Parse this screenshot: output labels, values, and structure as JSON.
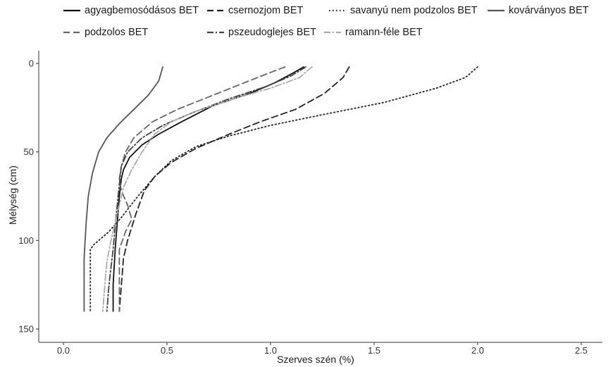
{
  "chart_data": {
    "type": "line",
    "title": "",
    "xlabel": "Szerves szén (%)",
    "ylabel": "Mélység (cm)",
    "xlim": [
      0,
      2.5
    ],
    "ylim": [
      150,
      0
    ],
    "y_reversed": true,
    "x_ticks": [
      0.0,
      0.5,
      1.0,
      1.5,
      2.0,
      2.5
    ],
    "x_tick_labels": [
      "0.0",
      "0.5",
      "1.0",
      "1.5",
      "2.0",
      "2.5"
    ],
    "y_ticks": [
      0,
      50,
      100,
      150
    ],
    "y_tick_labels": [
      "0",
      "50",
      "100",
      "150"
    ],
    "grid": false,
    "legend_position": "top",
    "series": [
      {
        "name": "agyagbemosódásos BET",
        "color": "#111111",
        "dash": "",
        "points": [
          [
            1.16,
            2
          ],
          [
            1.1,
            6
          ],
          [
            1.02,
            11
          ],
          [
            0.9,
            17
          ],
          [
            0.72,
            24
          ],
          [
            0.57,
            33
          ],
          [
            0.46,
            40
          ],
          [
            0.38,
            46
          ],
          [
            0.32,
            53
          ],
          [
            0.29,
            60
          ],
          [
            0.28,
            65
          ],
          [
            0.27,
            75
          ],
          [
            0.26,
            90
          ],
          [
            0.25,
            105
          ],
          [
            0.24,
            125
          ],
          [
            0.24,
            140
          ]
        ]
      },
      {
        "name": "csernozjom BET",
        "color": "#222222",
        "dash": "9,5",
        "points": [
          [
            1.38,
            2
          ],
          [
            1.35,
            8
          ],
          [
            1.26,
            17
          ],
          [
            1.12,
            26
          ],
          [
            0.95,
            33
          ],
          [
            0.8,
            40
          ],
          [
            0.64,
            48
          ],
          [
            0.52,
            56
          ],
          [
            0.44,
            64
          ],
          [
            0.39,
            72
          ],
          [
            0.35,
            85
          ],
          [
            0.31,
            100
          ],
          [
            0.29,
            110
          ],
          [
            0.28,
            125
          ],
          [
            0.27,
            140
          ]
        ]
      },
      {
        "name": "savanyú nem podzolos BET",
        "color": "#222222",
        "dash": "1.5,3.5",
        "points": [
          [
            2.0,
            2
          ],
          [
            1.94,
            8
          ],
          [
            1.8,
            14
          ],
          [
            1.55,
            22
          ],
          [
            1.25,
            29
          ],
          [
            1.0,
            35
          ],
          [
            0.8,
            41
          ],
          [
            0.64,
            47
          ],
          [
            0.52,
            55
          ],
          [
            0.44,
            64
          ],
          [
            0.36,
            75
          ],
          [
            0.28,
            87
          ],
          [
            0.22,
            95
          ],
          [
            0.15,
            102
          ],
          [
            0.13,
            105
          ],
          [
            0.13,
            120
          ],
          [
            0.13,
            140
          ]
        ]
      },
      {
        "name": "kovárványos BET",
        "color": "#555555",
        "dash": "",
        "points": [
          [
            0.48,
            2
          ],
          [
            0.46,
            10
          ],
          [
            0.41,
            18
          ],
          [
            0.34,
            26
          ],
          [
            0.27,
            34
          ],
          [
            0.21,
            42
          ],
          [
            0.17,
            50
          ],
          [
            0.14,
            62
          ],
          [
            0.12,
            75
          ],
          [
            0.11,
            90
          ],
          [
            0.1,
            110
          ],
          [
            0.1,
            125
          ],
          [
            0.1,
            140
          ]
        ]
      },
      {
        "name": "podzolos BET",
        "color": "#666666",
        "dash": "9,5",
        "points": [
          [
            1.07,
            2
          ],
          [
            0.98,
            6
          ],
          [
            0.85,
            12
          ],
          [
            0.7,
            19
          ],
          [
            0.55,
            26
          ],
          [
            0.43,
            33
          ],
          [
            0.34,
            42
          ],
          [
            0.3,
            50
          ],
          [
            0.28,
            58
          ],
          [
            0.27,
            65
          ],
          [
            0.28,
            72
          ],
          [
            0.31,
            80
          ],
          [
            0.33,
            88
          ],
          [
            0.3,
            95
          ],
          [
            0.27,
            105
          ],
          [
            0.27,
            125
          ],
          [
            0.27,
            140
          ]
        ]
      },
      {
        "name": "pszeudoglejes BET",
        "color": "#444444",
        "dash": "9,3,2,3",
        "points": [
          [
            1.17,
            2
          ],
          [
            1.1,
            7
          ],
          [
            0.98,
            13
          ],
          [
            0.8,
            20
          ],
          [
            0.62,
            28
          ],
          [
            0.48,
            35
          ],
          [
            0.38,
            42
          ],
          [
            0.31,
            50
          ],
          [
            0.28,
            58
          ],
          [
            0.27,
            68
          ],
          [
            0.26,
            80
          ],
          [
            0.25,
            92
          ],
          [
            0.24,
            105
          ],
          [
            0.22,
            125
          ],
          [
            0.21,
            140
          ]
        ]
      },
      {
        "name": "ramann-féle BET",
        "color": "#aaaaaa",
        "dash": "9,3,2,3",
        "points": [
          [
            1.2,
            2
          ],
          [
            1.14,
            8
          ],
          [
            1.0,
            14
          ],
          [
            0.82,
            20
          ],
          [
            0.64,
            27
          ],
          [
            0.52,
            33
          ],
          [
            0.44,
            40
          ],
          [
            0.38,
            50
          ],
          [
            0.33,
            60
          ],
          [
            0.29,
            70
          ],
          [
            0.27,
            80
          ],
          [
            0.25,
            90
          ],
          [
            0.23,
            100
          ],
          [
            0.21,
            112
          ],
          [
            0.2,
            125
          ],
          [
            0.19,
            140
          ]
        ]
      }
    ]
  }
}
